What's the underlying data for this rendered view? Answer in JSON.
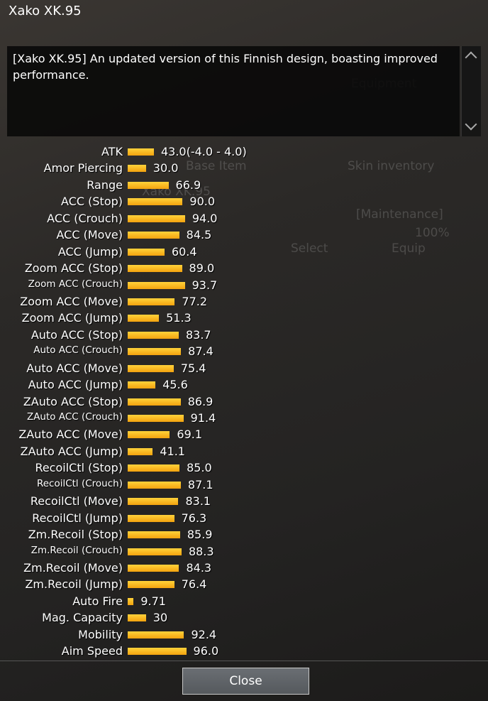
{
  "title": "Xako XK.95",
  "description": "[Xako XK.95] An updated version of this Finnish design, boasting improved performance.",
  "background_texts": [
    "Equipment",
    "Base Item",
    "Skin inventory",
    "Xako XK.95",
    "[Maintenance]",
    "100%",
    "Select",
    "Equip"
  ],
  "stats": [
    {
      "label": "ATK",
      "value": 43.0,
      "value_label": "43.0(-4.0 - 4.0)"
    },
    {
      "label": "Amor Piercing",
      "value": 30.0,
      "value_label": "30.0"
    },
    {
      "label": "Range",
      "value": 66.9
    },
    {
      "label": "ACC (Stop)",
      "value": 90.0,
      "value_label": "90.0"
    },
    {
      "label": "ACC (Crouch)",
      "value": 94.0,
      "value_label": "94.0"
    },
    {
      "label": "ACC (Move)",
      "value": 84.5
    },
    {
      "label": "ACC (Jump)",
      "value": 60.4
    },
    {
      "label": "Zoom ACC (Stop)",
      "value": 89.0,
      "value_label": "89.0"
    },
    {
      "label": "Zoom ACC (Crouch)",
      "value": 93.7
    },
    {
      "label": "Zoom ACC (Move)",
      "value": 77.2
    },
    {
      "label": "Zoom ACC (Jump)",
      "value": 51.3
    },
    {
      "label": "Auto ACC (Stop)",
      "value": 83.7
    },
    {
      "label": "Auto ACC (Crouch)",
      "value": 87.4
    },
    {
      "label": "Auto ACC (Move)",
      "value": 75.4
    },
    {
      "label": "Auto ACC (Jump)",
      "value": 45.6
    },
    {
      "label": "ZAuto ACC (Stop)",
      "value": 86.9
    },
    {
      "label": "ZAuto ACC (Crouch)",
      "value": 91.4
    },
    {
      "label": "ZAuto ACC (Move)",
      "value": 69.1
    },
    {
      "label": "ZAuto ACC (Jump)",
      "value": 41.1
    },
    {
      "label": "RecoilCtl (Stop)",
      "value": 85.0,
      "value_label": "85.0"
    },
    {
      "label": "RecoilCtl (Crouch)",
      "value": 87.1
    },
    {
      "label": "RecoilCtl (Move)",
      "value": 83.1
    },
    {
      "label": "RecoilCtl (Jump)",
      "value": 76.3
    },
    {
      "label": "Zm.Recoil (Stop)",
      "value": 85.9
    },
    {
      "label": "Zm.Recoil (Crouch)",
      "value": 88.3
    },
    {
      "label": "Zm.Recoil (Move)",
      "value": 84.3
    },
    {
      "label": "Zm.Recoil (Jump)",
      "value": 76.4
    },
    {
      "label": "Auto Fire",
      "value": 9.71
    },
    {
      "label": "Mag. Capacity",
      "value": 30
    },
    {
      "label": "Mobility",
      "value": 92.4
    },
    {
      "label": "Aim Speed",
      "value": 96.0,
      "value_label": "96.0"
    }
  ],
  "button": "Close"
}
